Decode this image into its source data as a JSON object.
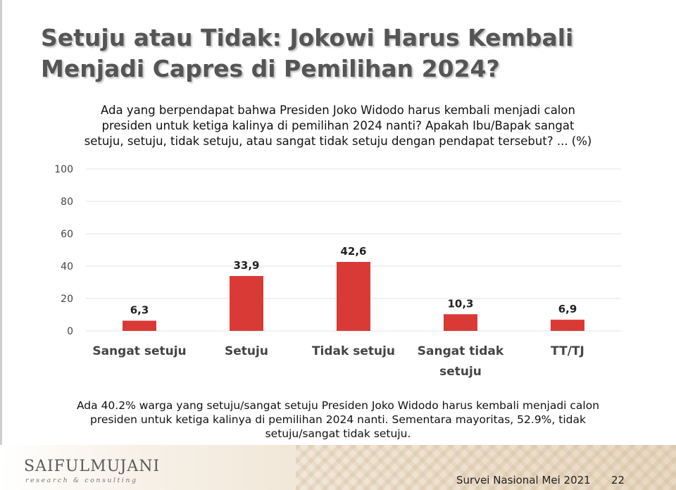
{
  "slide": {
    "title": "Setuju atau Tidak: Jokowi Harus Kembali Menjadi Capres di Pemilihan 2024?",
    "question_lines": [
      "Ada yang berpendapat bahwa Presiden Joko Widodo harus kembali menjadi calon",
      "presiden untuk ketiga kalinya di pemilihan 2024 nanti? Apakah Ibu/Bapak sangat",
      "setuju, setuju, tidak setuju, atau sangat tidak setuju dengan pendapat tersebut? ... (%)"
    ],
    "note_lines": [
      "Ada 40.2% warga yang setuju/sangat setuju Presiden Joko Widodo harus kembali menjadi calon",
      "presiden untuk ketiga kalinya di pemilihan 2024 nanti. Sementara mayoritas, 52.9%, tidak",
      "setuju/sangat tidak setuju."
    ]
  },
  "footer": {
    "logo": "SAIFULMUJANI",
    "logo_sub": "research & consulting",
    "source": "Survei Nasional Mei 2021",
    "page": "22"
  },
  "chart_data": {
    "type": "bar",
    "categories": [
      "Sangat setuju",
      "Setuju",
      "Tidak setuju",
      "Sangat tidak setuju",
      "TT/TJ"
    ],
    "category_lines": [
      [
        "Sangat setuju"
      ],
      [
        "Setuju"
      ],
      [
        "Tidak setuju"
      ],
      [
        "Sangat tidak",
        "setuju"
      ],
      [
        "TT/TJ"
      ]
    ],
    "values": [
      6.3,
      33.9,
      42.6,
      10.3,
      6.9
    ],
    "value_labels": [
      "6,3",
      "33,9",
      "42,6",
      "10,3",
      "6,9"
    ],
    "yticks": [
      0,
      20,
      40,
      60,
      80,
      100
    ],
    "ylim": [
      0,
      100
    ],
    "grid": true,
    "legend": "none",
    "bar_color": "#d93a36",
    "grid_color": "#e3e3e3"
  }
}
